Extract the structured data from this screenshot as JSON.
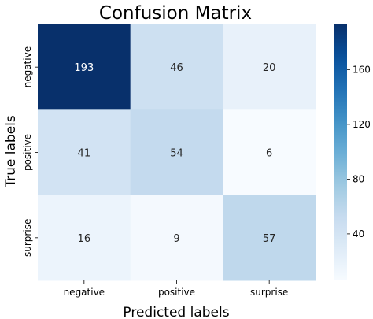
{
  "chart_data": {
    "type": "heatmap",
    "title": "Confusion Matrix",
    "xlabel": "Predicted labels",
    "ylabel": "True labels",
    "x_categories": [
      "negative",
      "positive",
      "surprise"
    ],
    "y_categories": [
      "negative",
      "positive",
      "surprise"
    ],
    "values": [
      [
        193,
        46,
        20
      ],
      [
        41,
        54,
        6
      ],
      [
        16,
        9,
        57
      ]
    ],
    "colormap": "Blues",
    "colorbar": {
      "range": [
        6,
        193
      ],
      "ticks": [
        40,
        80,
        120,
        160
      ]
    },
    "colors": {
      "low": "#f7fbff",
      "high": "#08306b",
      "text_dark": "#262626",
      "text_light": "#ffffff"
    }
  }
}
